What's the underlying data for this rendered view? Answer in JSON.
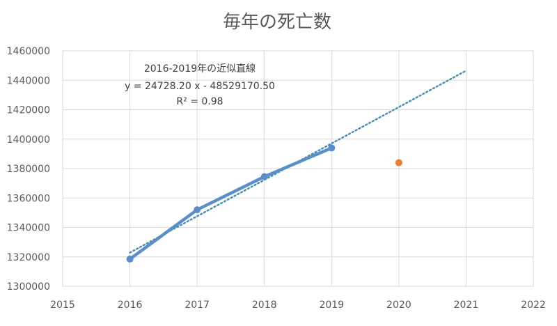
{
  "chart_data": {
    "type": "line",
    "title": "毎年の死亡数",
    "xlabel": "",
    "ylabel": "",
    "xlim": [
      2015,
      2022
    ],
    "ylim": [
      1300000,
      1460000
    ],
    "x_ticks": [
      "2015",
      "2016",
      "2017",
      "2018",
      "2019",
      "2020",
      "2021",
      "2022"
    ],
    "y_ticks": [
      "1300000",
      "1320000",
      "1340000",
      "1360000",
      "1380000",
      "1400000",
      "1420000",
      "1440000",
      "1460000"
    ],
    "grid": "vertical and horizontal",
    "series": [
      {
        "role": "actual",
        "x": [
          2016,
          2017,
          2018,
          2019
        ],
        "y": [
          1318500,
          1352000,
          1374500,
          1394000
        ],
        "color": "#5b8fc9"
      },
      {
        "role": "single-point",
        "x": [
          2020
        ],
        "y": [
          1384000
        ],
        "color": "#ed7d31"
      }
    ],
    "trendline": {
      "slope": 24728.2,
      "intercept": -48529170.5,
      "x_range": [
        2016,
        2021
      ],
      "color": "#4a8fb0"
    },
    "annotation": {
      "line1": "2016-2019年の近似直線",
      "line2": "y = 24728.20 x - 48529170.50",
      "line3": "R² = 0.98"
    }
  }
}
